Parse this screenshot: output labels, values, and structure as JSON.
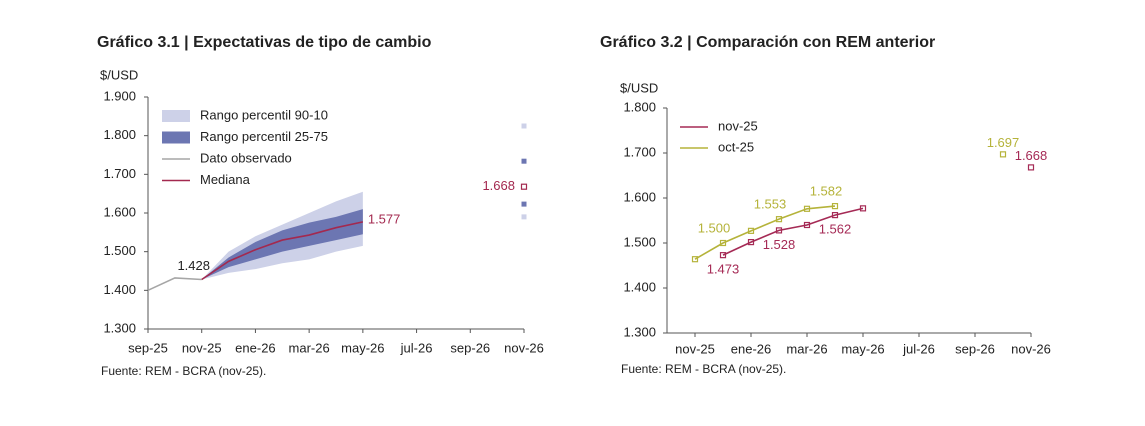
{
  "chart_data": [
    {
      "type": "line",
      "title": "Gráfico 3.1 | Expectativas de tipo de cambio",
      "y_label": "$/USD",
      "source": "Fuente: REM - BCRA (nov-25).",
      "categories": [
        "sep-25",
        null,
        "nov-25",
        null,
        "ene-26",
        null,
        "mar-26",
        null,
        "may-26",
        null,
        "jul-26",
        null,
        "sep-26",
        null,
        "nov-26"
      ],
      "ylim": [
        1.3,
        1.9
      ],
      "yticks": [
        {
          "value": 1.3,
          "label": "1.300"
        },
        {
          "value": 1.4,
          "label": "1.400"
        },
        {
          "value": 1.5,
          "label": "1.500"
        },
        {
          "value": 1.6,
          "label": "1.600"
        },
        {
          "value": 1.7,
          "label": "1.700"
        },
        {
          "value": 1.8,
          "label": "1.800"
        },
        {
          "value": 1.9,
          "label": "1.900"
        }
      ],
      "legend": "upper left",
      "series": [
        {
          "name": "Rango percentil 90-10",
          "style": "band",
          "color": "#cdd1e8",
          "low": [
            null,
            null,
            1.428,
            1.445,
            1.455,
            1.47,
            1.48,
            1.5,
            1.515,
            null,
            null,
            null,
            null,
            null,
            1.59
          ],
          "high": [
            null,
            null,
            1.428,
            1.5,
            1.54,
            1.57,
            1.6,
            1.63,
            1.655,
            null,
            null,
            null,
            null,
            null,
            1.825
          ]
        },
        {
          "name": "Rango percentil 25-75",
          "style": "band",
          "color": "#6c76b2",
          "low": [
            null,
            null,
            1.428,
            1.46,
            1.48,
            1.5,
            1.515,
            1.53,
            1.545,
            null,
            null,
            null,
            null,
            null,
            1.623
          ],
          "high": [
            null,
            null,
            1.428,
            1.485,
            1.525,
            1.555,
            1.575,
            1.59,
            1.61,
            null,
            null,
            null,
            null,
            null,
            1.734
          ]
        },
        {
          "name": "Dato observado",
          "style": "line",
          "color": "#a6a6a6",
          "values": [
            1.4,
            1.432,
            1.428,
            null,
            null,
            null,
            null,
            null,
            null,
            null,
            null,
            null,
            null,
            null,
            null
          ],
          "value_labels": [
            null,
            null,
            "1.428",
            null,
            null,
            null,
            null,
            null,
            null,
            null,
            null,
            null,
            null,
            null,
            null
          ]
        },
        {
          "name": "Mediana",
          "style": "line",
          "color": "#a3294f",
          "values": [
            null,
            null,
            1.428,
            1.475,
            1.505,
            1.53,
            1.543,
            1.562,
            1.577,
            null,
            null,
            null,
            null,
            null,
            1.668
          ],
          "value_labels": [
            null,
            null,
            null,
            null,
            null,
            null,
            null,
            null,
            "1.577",
            null,
            null,
            null,
            null,
            null,
            "1.668"
          ]
        }
      ]
    },
    {
      "type": "line",
      "title": "Gráfico 3.2 | Comparación con REM anterior",
      "y_label": "$/USD",
      "source": "Fuente: REM - BCRA (nov-25).",
      "categories": [
        null,
        "nov-25",
        null,
        "ene-26",
        null,
        "mar-26",
        null,
        "may-26",
        null,
        "jul-26",
        null,
        "sep-26",
        null,
        "nov-26"
      ],
      "ylim": [
        1.3,
        1.8
      ],
      "yticks": [
        {
          "value": 1.3,
          "label": "1.300"
        },
        {
          "value": 1.4,
          "label": "1.400"
        },
        {
          "value": 1.5,
          "label": "1.500"
        },
        {
          "value": 1.6,
          "label": "1.600"
        },
        {
          "value": 1.7,
          "label": "1.700"
        },
        {
          "value": 1.8,
          "label": "1.800"
        }
      ],
      "legend": "upper left",
      "markers": true,
      "series": [
        {
          "name": "nov-25",
          "style": "line",
          "color": "#a52a55",
          "values": [
            null,
            null,
            1.473,
            1.502,
            1.528,
            1.54,
            1.562,
            1.577,
            null,
            null,
            null,
            null,
            null,
            1.668
          ],
          "value_labels": [
            null,
            null,
            "1.473",
            null,
            "1.528",
            null,
            "1.562",
            null,
            null,
            null,
            null,
            null,
            null,
            "1.668"
          ]
        },
        {
          "name": "oct-25",
          "style": "line",
          "color": "#b5b33a",
          "values": [
            null,
            1.464,
            1.5,
            1.527,
            1.553,
            1.576,
            1.582,
            null,
            null,
            null,
            null,
            null,
            1.697,
            null
          ],
          "value_labels": [
            null,
            null,
            "1.500",
            null,
            "1.553",
            null,
            "1.582",
            null,
            null,
            null,
            null,
            null,
            "1.697",
            null
          ]
        }
      ]
    }
  ]
}
